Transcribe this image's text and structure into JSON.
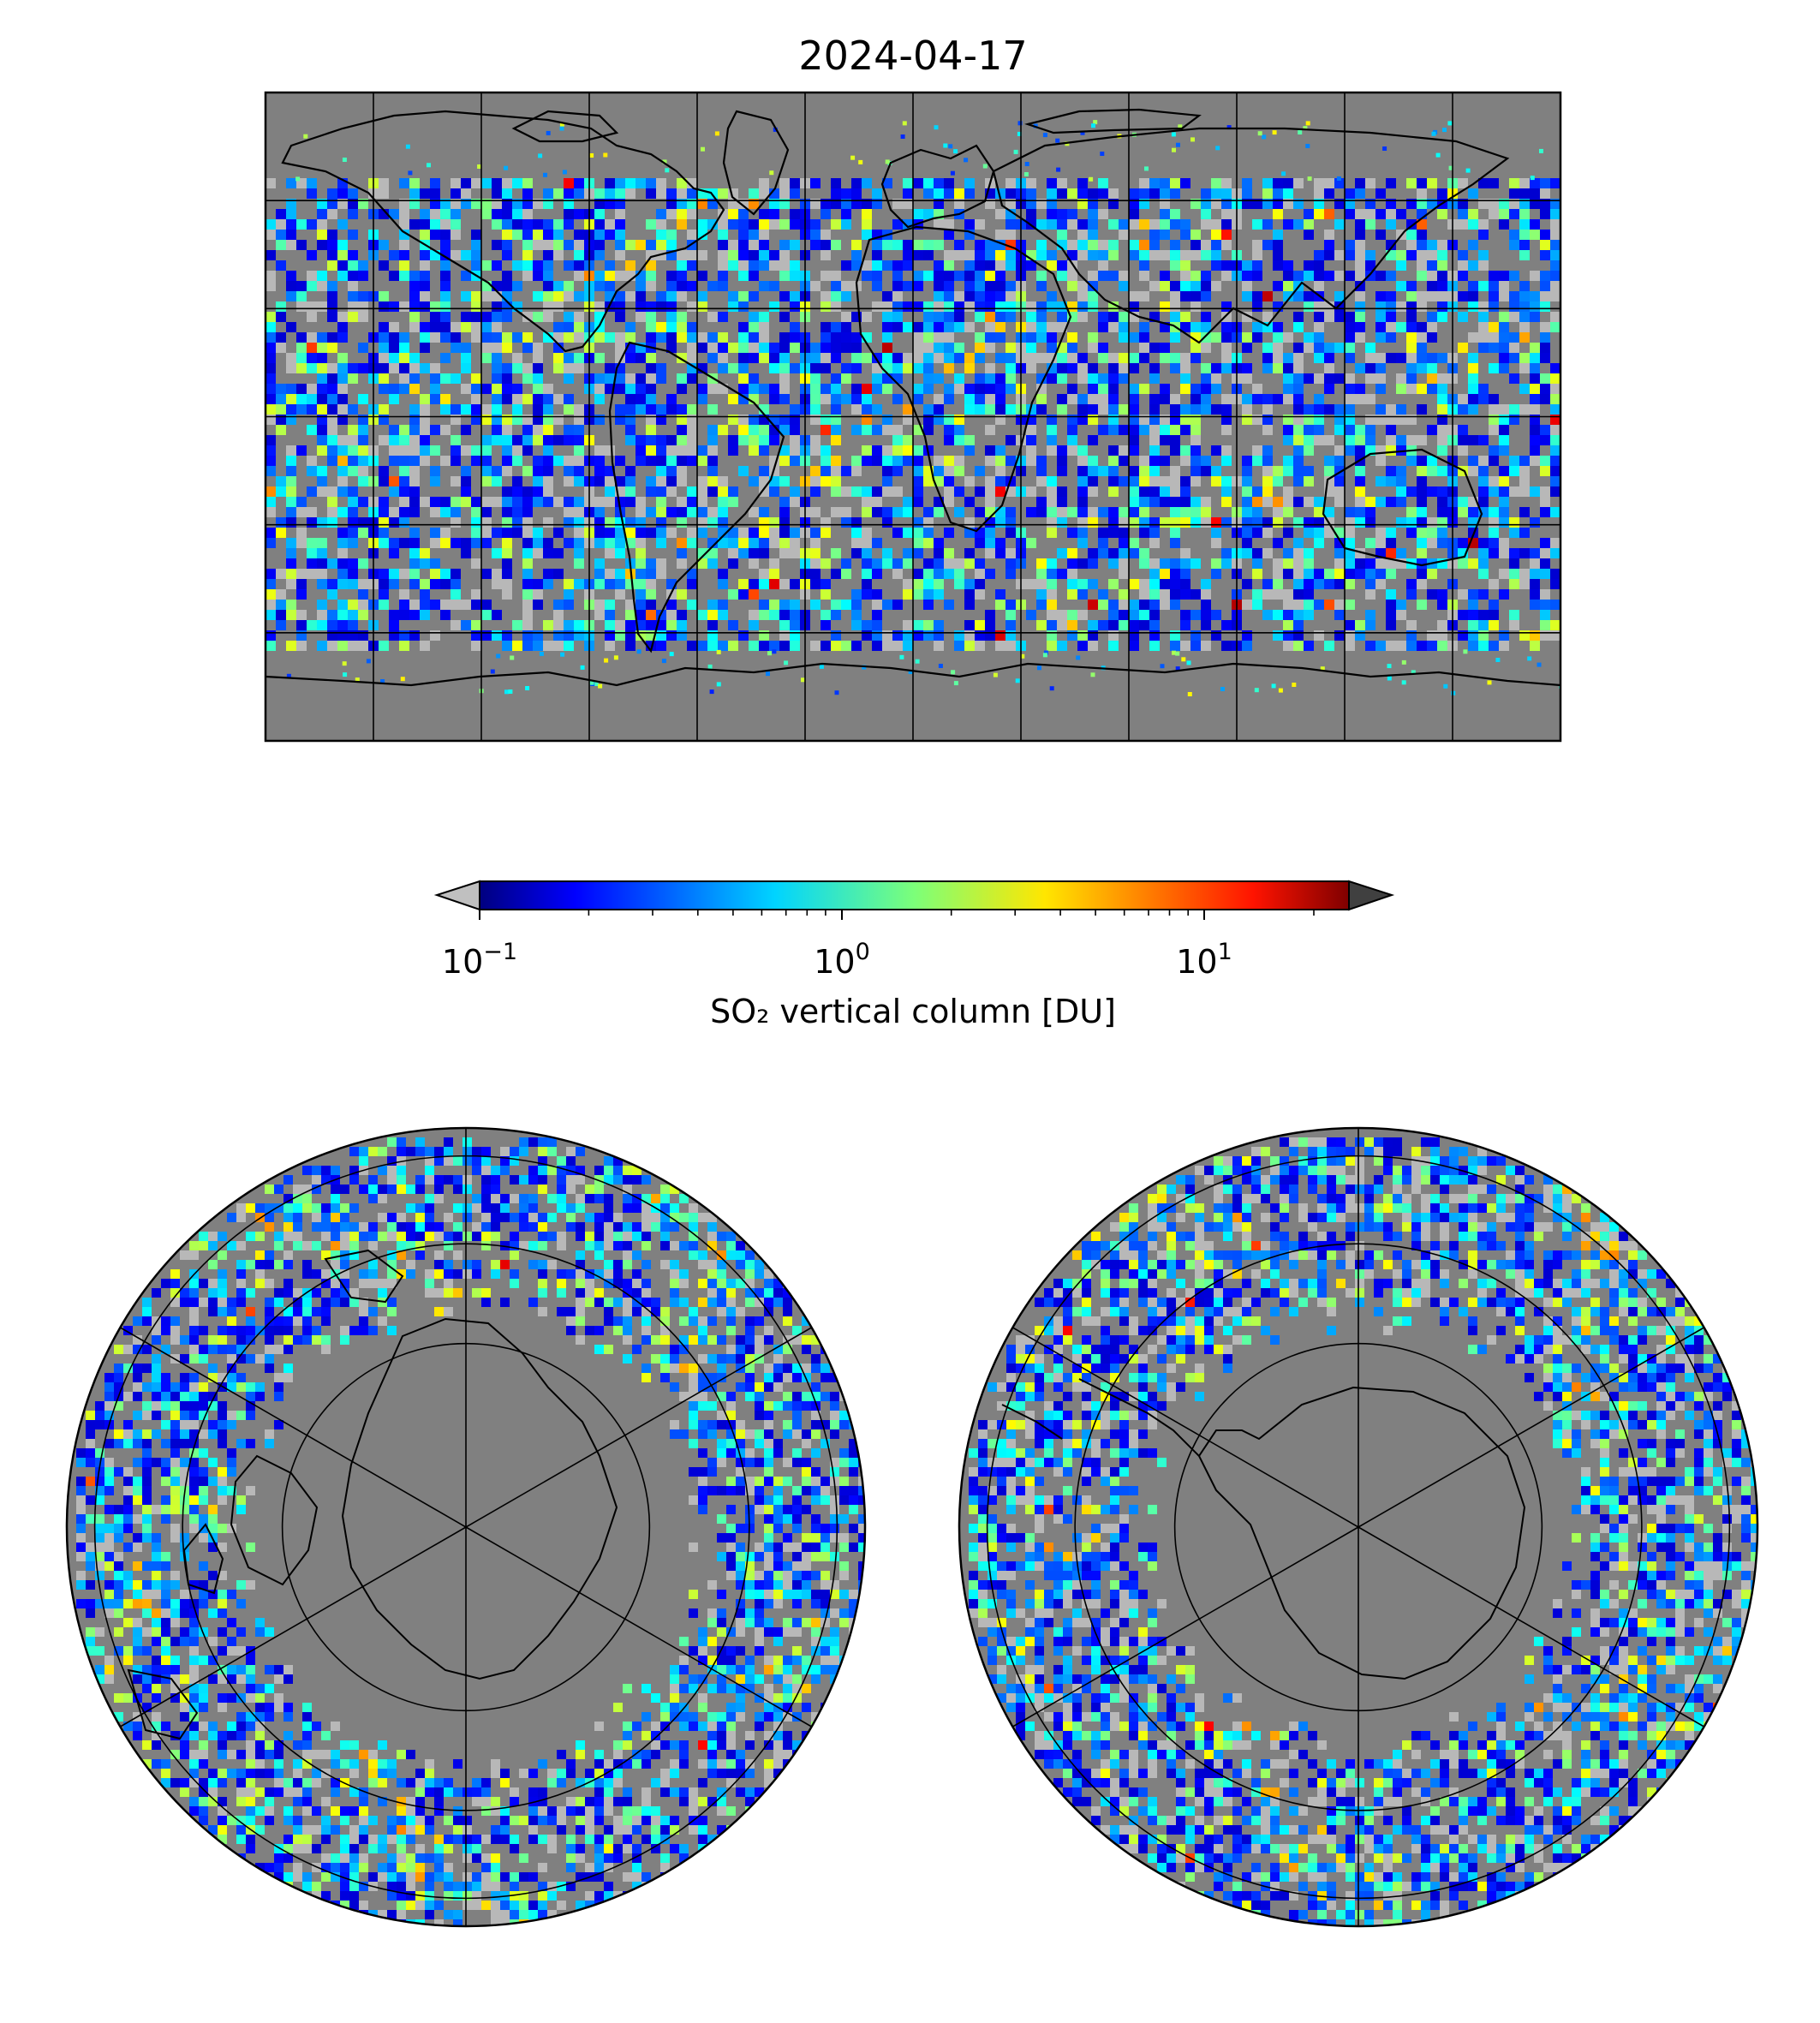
{
  "title": "2024-04-17",
  "colorbar": {
    "label": "SO₂ vertical column [DU]",
    "scale": "log",
    "range": [
      0.1,
      25
    ],
    "extend": "both",
    "colormap": "jet",
    "under_color": "#c0c0c0",
    "over_color": "#404040",
    "ticks": [
      {
        "value": 0.1,
        "base": "10",
        "exp": "−1"
      },
      {
        "value": 1,
        "base": "10",
        "exp": "0"
      },
      {
        "value": 10,
        "base": "10",
        "exp": "1"
      }
    ]
  },
  "maps": [
    {
      "id": "global",
      "projection": "plate-carree",
      "graticule_deg": 30
    },
    {
      "id": "north-polar",
      "projection": "north-polar-stereographic",
      "graticule_deg": 30
    },
    {
      "id": "south-polar",
      "projection": "south-polar-stereographic",
      "graticule_deg": 30
    }
  ],
  "colors": {
    "no_data": "#808080",
    "below_range": "#b8b8b8",
    "coastline": "#000000",
    "gridline": "#000000"
  }
}
